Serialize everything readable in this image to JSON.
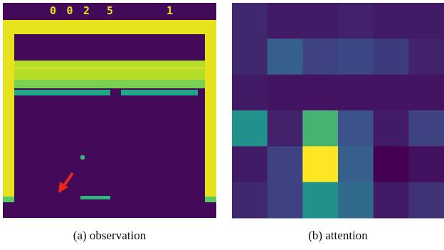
{
  "observation": {
    "score": "002",
    "lives": "5",
    "level": "1",
    "caption": "(a) observation"
  },
  "attention": {
    "caption": "(b) attention",
    "grid": [
      [
        0.12,
        0.08,
        0.08,
        0.1,
        0.08,
        0.08
      ],
      [
        0.12,
        0.3,
        0.2,
        0.22,
        0.18,
        0.1
      ],
      [
        0.08,
        0.06,
        0.06,
        0.06,
        0.06,
        0.06
      ],
      [
        0.5,
        0.1,
        0.65,
        0.25,
        0.08,
        0.2
      ],
      [
        0.08,
        0.2,
        1.0,
        0.3,
        0.0,
        0.05
      ],
      [
        0.12,
        0.2,
        0.5,
        0.35,
        0.08,
        0.15
      ]
    ]
  }
}
